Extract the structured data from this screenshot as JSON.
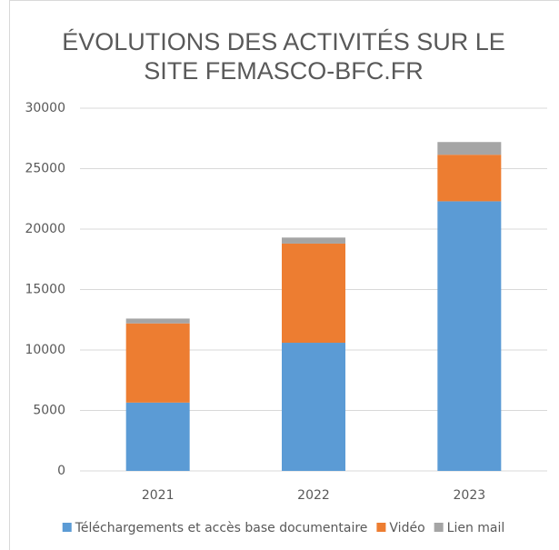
{
  "chart_data": {
    "type": "stacked_bar",
    "title": [
      "ÉVOLUTIONS DES ACTIVITÉS SUR LE",
      "SITE FEMASCO-BFC.FR"
    ],
    "categories": [
      "2021",
      "2022",
      "2023"
    ],
    "series": [
      {
        "name": "Téléchargements et accès base documentaire",
        "color": "#5b9bd5",
        "values": [
          5650,
          10600,
          22300
        ]
      },
      {
        "name": "Vidéo",
        "color": "#ed7d31",
        "values": [
          6550,
          8200,
          3850
        ]
      },
      {
        "name": "Lien mail",
        "color": "#a5a5a5",
        "values": [
          400,
          500,
          1050
        ]
      }
    ],
    "ylim": [
      0,
      30000
    ],
    "yticks": [
      0,
      5000,
      10000,
      15000,
      20000,
      25000,
      30000
    ],
    "grid": true
  }
}
